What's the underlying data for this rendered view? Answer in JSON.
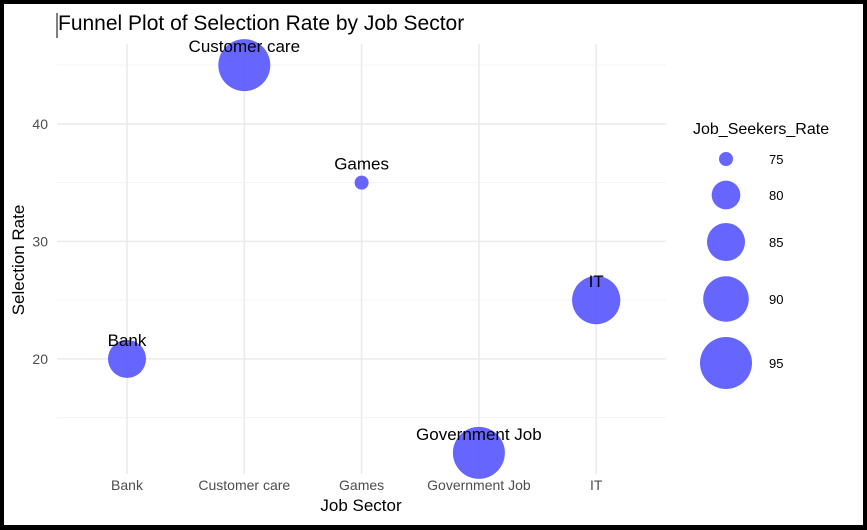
{
  "chart_data": {
    "type": "scatter",
    "title": "Funnel Plot of Selection Rate by Job Sector",
    "xlabel": "Job Sector",
    "ylabel": "Selection Rate",
    "categories": [
      "Bank",
      "Customer care",
      "Games",
      "Government Job",
      "IT"
    ],
    "points": [
      {
        "x": "Bank",
        "y": 20,
        "size": 85,
        "label": "Bank"
      },
      {
        "x": "Customer care",
        "y": 45,
        "size": 95,
        "label": "Customer care"
      },
      {
        "x": "Games",
        "y": 35,
        "size": 75,
        "label": "Games"
      },
      {
        "x": "Government Job",
        "y": 12,
        "size": 95,
        "label": "Government Job"
      },
      {
        "x": "IT",
        "y": 25,
        "size": 92,
        "label": "IT"
      }
    ],
    "yticks": [
      20,
      30,
      40
    ],
    "ylim": [
      10.2,
      46.8
    ],
    "grid": true,
    "color": "#5555ff",
    "legend": {
      "title": "Job_Seekers_Rate",
      "placement": "right",
      "values": [
        75,
        80,
        85,
        90,
        95
      ]
    }
  }
}
